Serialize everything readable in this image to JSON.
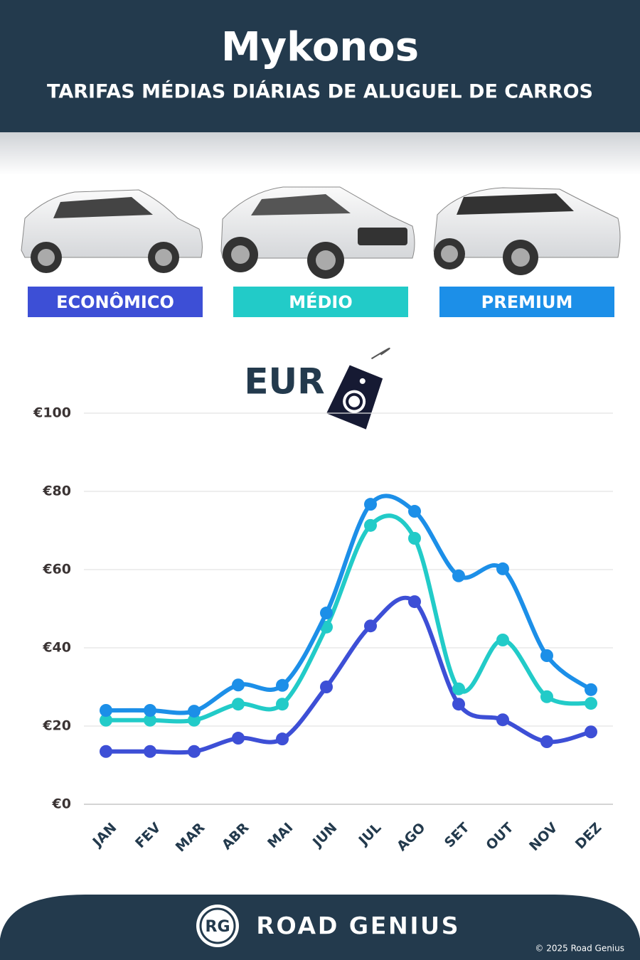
{
  "chart_data": {
    "type": "line",
    "title": "Mykonos",
    "subtitle": "TARIFAS MÉDIAS DIÁRIAS DE ALUGUEL DE CARROS",
    "unit_label": "EUR",
    "categories": [
      "JAN",
      "FEV",
      "MAR",
      "ABR",
      "MAI",
      "JUN",
      "JUL",
      "AGO",
      "SET",
      "OUT",
      "NOV",
      "DEZ"
    ],
    "series": [
      {
        "name": "ECONÔMICO",
        "color": "#3d4fd6",
        "values": [
          13.5,
          13.5,
          13.5,
          16.9,
          16.7,
          30,
          45.6,
          51.8,
          25.6,
          21.6,
          16,
          18.5
        ]
      },
      {
        "name": "MÉDIO",
        "color": "#22cbc8",
        "values": [
          21.5,
          21.5,
          21.5,
          25.6,
          25.6,
          45.3,
          71.3,
          68,
          29.5,
          42,
          27.5,
          25.8
        ]
      },
      {
        "name": "PREMIUM",
        "color": "#1c8fe8",
        "values": [
          24,
          24,
          23.8,
          30.5,
          30.4,
          48.9,
          76.7,
          74.9,
          58.4,
          60.2,
          38,
          29.3
        ]
      }
    ],
    "ylim": [
      0,
      100
    ],
    "yticks": [
      {
        "value": 0,
        "label": "€0"
      },
      {
        "value": 20,
        "label": "€20"
      },
      {
        "value": 40,
        "label": "€40"
      },
      {
        "value": 60,
        "label": "€60"
      },
      {
        "value": 80,
        "label": "€80"
      },
      {
        "value": 100,
        "label": "€100"
      }
    ],
    "grid": true
  },
  "footer": {
    "brand_initials": "RG",
    "brand": "ROAD GENIUS",
    "copyright": "© 2025 Road Genius"
  }
}
